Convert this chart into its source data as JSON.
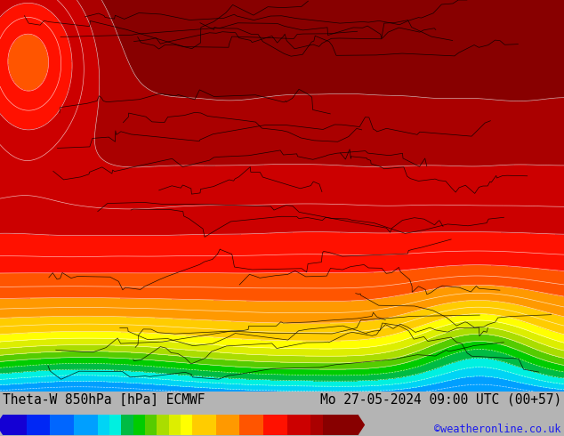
{
  "title_left": "Theta-W 850hPa [hPa] ECMWF",
  "title_right": "Mo 27-05-2024 09:00 UTC (00+57)",
  "credit": "©weatheronline.co.uk",
  "colorbar_levels": [
    -12,
    -10,
    -8,
    -6,
    -4,
    -3,
    -2,
    -1,
    0,
    1,
    2,
    3,
    4,
    6,
    8,
    10,
    12,
    14,
    15,
    18
  ],
  "colorbar_colors": [
    "#1400d4",
    "#0027f5",
    "#0066ff",
    "#009fff",
    "#00d4f5",
    "#00f0e0",
    "#00bb44",
    "#00cc00",
    "#55cc00",
    "#aadd00",
    "#ddee00",
    "#ffff00",
    "#ffcc00",
    "#ff9900",
    "#ff5500",
    "#ff1100",
    "#cc0000",
    "#aa0000",
    "#880000"
  ],
  "bg_color": "#b4b4b4",
  "title_fontsize": 10.5,
  "credit_fontsize": 8.5,
  "bottom_bar_height": 0.102
}
